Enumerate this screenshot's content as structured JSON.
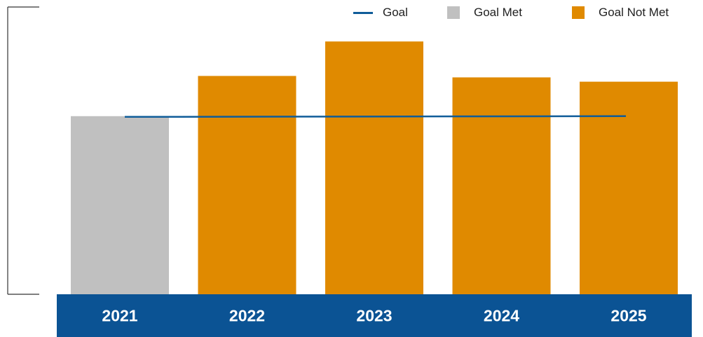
{
  "chart_data": {
    "type": "bar",
    "categories": [
      "2021",
      "2022",
      "2023",
      "2024",
      "2025"
    ],
    "series": [
      {
        "name": "Goal Met / Goal Not Met",
        "values": [
          0.62,
          0.76,
          0.88,
          0.755,
          0.74
        ],
        "status": [
          "Goal Met",
          "Goal Not Met",
          "Goal Not Met",
          "Goal Not Met",
          "Goal Not Met"
        ]
      }
    ],
    "goal": {
      "name": "Goal",
      "value": 0.62
    },
    "ylim": [
      0,
      1
    ],
    "title": "",
    "xlabel": "",
    "ylabel": "",
    "y_tick_labels_shown": false,
    "grid": false,
    "legend_position": "top-right"
  },
  "legend": {
    "goal_label": "Goal",
    "met_label": "Goal Met",
    "not_met_label": "Goal Not Met"
  },
  "colors": {
    "goal_line": "#0f5c99",
    "goal_met": "#c0c0c0",
    "goal_not_met": "#e08a00",
    "category_band": "#0b5394",
    "axis": "#333333",
    "category_text": "#ffffff"
  }
}
